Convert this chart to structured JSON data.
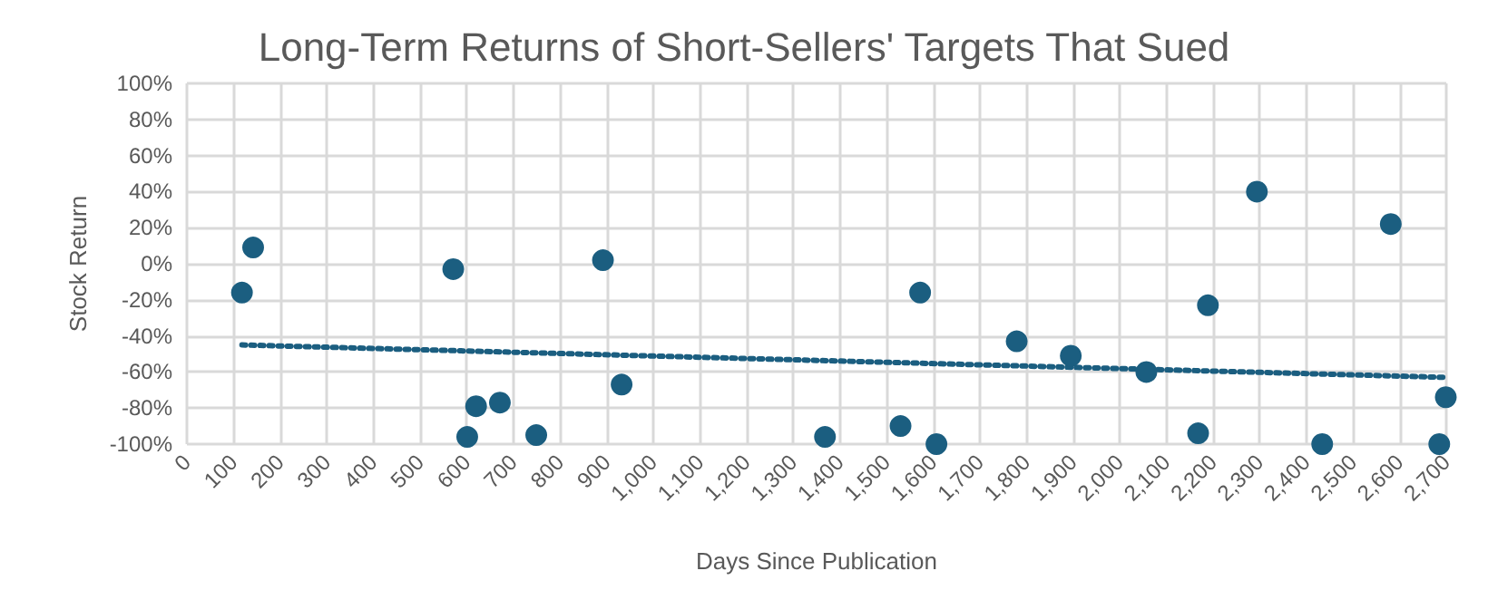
{
  "chart_data": {
    "type": "scatter",
    "title": "Long-Term Returns of Short-Sellers' Targets That Sued",
    "xlabel": "Days Since Publication",
    "ylabel": "Stock Return",
    "series": [
      {
        "color": "#1b5e80",
        "marker": "circle",
        "x": [
          118,
          142,
          571,
          601,
          620,
          671,
          749,
          892,
          932,
          1368,
          1530,
          1572,
          1607,
          1779,
          1895,
          2057,
          2168,
          2189,
          2294,
          2434,
          2581,
          2685,
          2699
        ],
        "values": [
          -16,
          9,
          -3,
          -96,
          -79,
          -77,
          -95,
          2,
          -67,
          -96,
          -90,
          -16,
          -100,
          -43,
          -51,
          -60,
          -94,
          -23,
          40,
          -100,
          22,
          -100,
          -74
        ]
      },
      {
        "type": "line",
        "color": "#1b5e80",
        "line_style": "dotted",
        "marker": "none",
        "x": [
          118,
          2700
        ],
        "values": [
          -45,
          -63
        ]
      }
    ],
    "xlim": [
      0,
      2700
    ],
    "xticks": [
      0,
      100,
      200,
      300,
      400,
      500,
      600,
      700,
      800,
      900,
      {
        "value": 1000,
        "label": "1,000"
      },
      {
        "value": 1100,
        "label": "1,100"
      },
      {
        "value": 1200,
        "label": "1,200"
      },
      {
        "value": 1300,
        "label": "1,300"
      },
      {
        "value": 1400,
        "label": "1,400"
      },
      {
        "value": 1500,
        "label": "1,500"
      },
      {
        "value": 1600,
        "label": "1,600"
      },
      {
        "value": 1700,
        "label": "1,700"
      },
      {
        "value": 1800,
        "label": "1,800"
      },
      {
        "value": 1900,
        "label": "1,900"
      },
      {
        "value": 2000,
        "label": "2,000"
      },
      {
        "value": 2100,
        "label": "2,100"
      },
      {
        "value": 2200,
        "label": "2,200"
      },
      {
        "value": 2300,
        "label": "2,300"
      },
      {
        "value": 2400,
        "label": "2,400"
      },
      {
        "value": 2500,
        "label": "2,500"
      },
      {
        "value": 2600,
        "label": "2,600"
      },
      {
        "value": 2700,
        "label": "2,700"
      }
    ],
    "ylim": [
      -100,
      100
    ],
    "yticks": [
      {
        "value": -100,
        "label": "-100%"
      },
      {
        "value": -80,
        "label": "-80%"
      },
      {
        "value": -60,
        "label": "-60%"
      },
      {
        "value": -40,
        "label": "-40%"
      },
      {
        "value": -20,
        "label": "-20%"
      },
      {
        "value": 0,
        "label": "0%"
      },
      {
        "value": 20,
        "label": "20%"
      },
      {
        "value": 40,
        "label": "40%"
      },
      {
        "value": 60,
        "label": "60%"
      },
      {
        "value": 80,
        "label": "80%"
      },
      {
        "value": 100,
        "label": "100%"
      }
    ],
    "grid": true
  }
}
